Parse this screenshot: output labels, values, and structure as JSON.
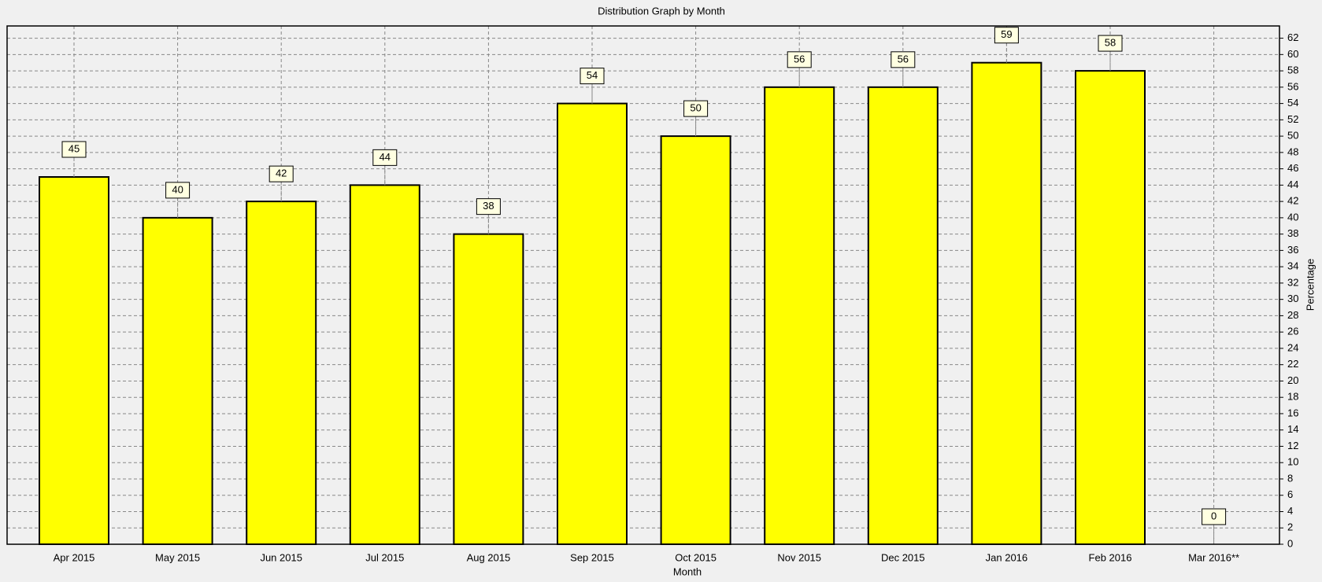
{
  "chart_data": {
    "type": "bar",
    "title": "Distribution Graph by Month",
    "x_label": "Month",
    "y_label": "Percentage",
    "categories": [
      "Apr 2015",
      "May 2015",
      "Jun 2015",
      "Jul 2015",
      "Aug 2015",
      "Sep 2015",
      "Oct 2015",
      "Nov 2015",
      "Dec 2015",
      "Jan 2016",
      "Feb 2016",
      "Mar 2016**"
    ],
    "values": [
      45,
      40,
      42,
      44,
      38,
      54,
      50,
      56,
      56,
      59,
      58,
      0
    ],
    "color": "#ffff00",
    "ylim": [
      0,
      63.5
    ],
    "yticks": [
      0,
      2,
      4,
      6,
      8,
      10,
      12,
      14,
      16,
      18,
      20,
      22,
      24,
      26,
      28,
      30,
      32,
      34,
      36,
      38,
      40,
      42,
      44,
      46,
      48,
      50,
      52,
      54,
      56,
      58,
      60,
      62
    ],
    "grid": true
  }
}
